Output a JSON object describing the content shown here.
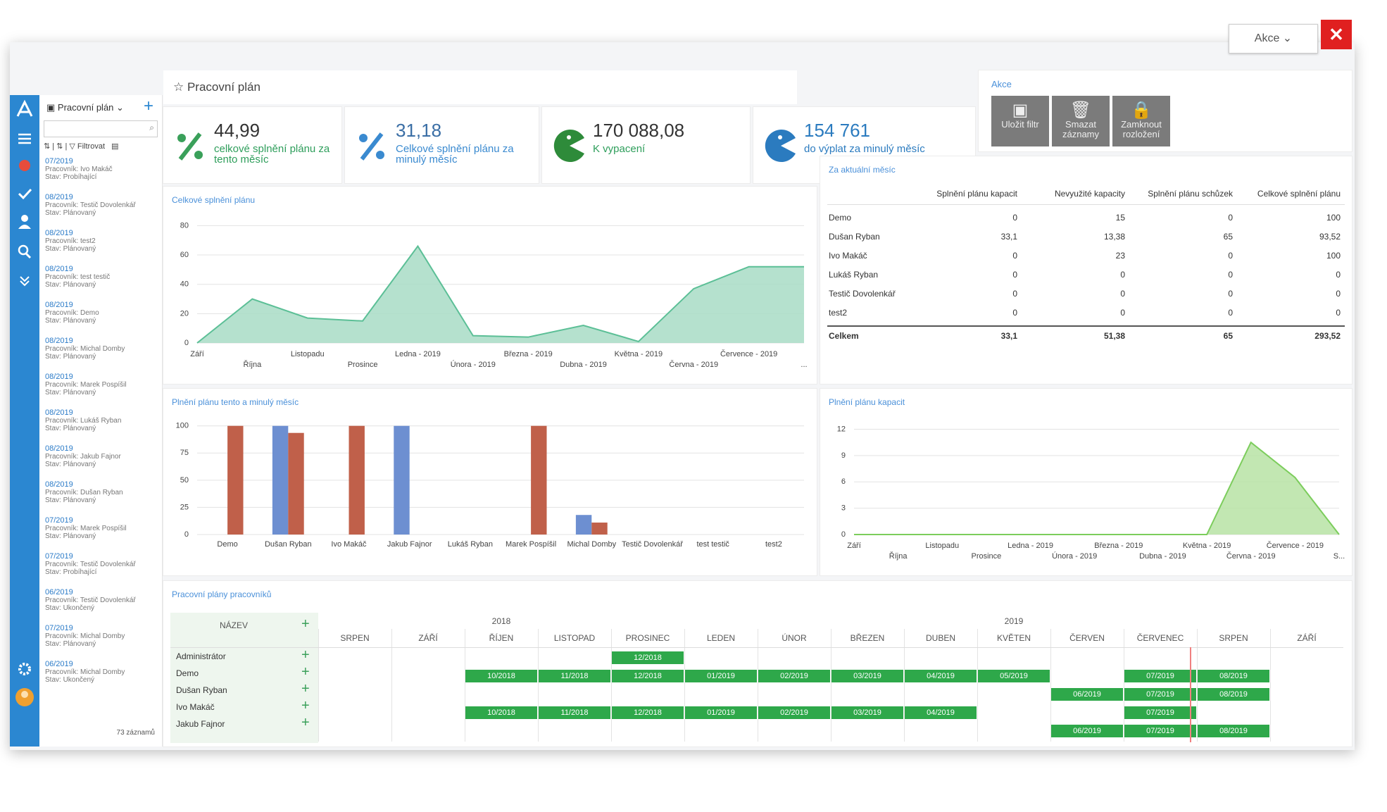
{
  "header": {
    "actions_button": "Akce"
  },
  "nav": {
    "list_title": "Pracovní plán",
    "filter": "Filtrovat",
    "count": "73 záznamů"
  },
  "records": [
    {
      "period": "07/2019",
      "worker": "Pracovník: Ivo Makáč",
      "status": "Stav: Probíhající"
    },
    {
      "period": "08/2019",
      "worker": "Pracovník: Testič Dovolenkář",
      "status": "Stav: Plánovaný"
    },
    {
      "period": "08/2019",
      "worker": "Pracovník: test2",
      "status": "Stav: Plánovaný"
    },
    {
      "period": "08/2019",
      "worker": "Pracovník: test testič",
      "status": "Stav: Plánovaný"
    },
    {
      "period": "08/2019",
      "worker": "Pracovník: Demo",
      "status": "Stav: Plánovaný"
    },
    {
      "period": "08/2019",
      "worker": "Pracovník: Michal Domby",
      "status": "Stav: Plánovaný"
    },
    {
      "period": "08/2019",
      "worker": "Pracovník: Marek Pospíšil",
      "status": "Stav: Plánovaný"
    },
    {
      "period": "08/2019",
      "worker": "Pracovník: Lukáš Ryban",
      "status": "Stav: Plánovaný"
    },
    {
      "period": "08/2019",
      "worker": "Pracovník: Jakub Fajnor",
      "status": "Stav: Plánovaný"
    },
    {
      "period": "08/2019",
      "worker": "Pracovník: Dušan Ryban",
      "status": "Stav: Plánovaný"
    },
    {
      "period": "07/2019",
      "worker": "Pracovník: Marek Pospíšil",
      "status": "Stav: Plánovaný"
    },
    {
      "period": "07/2019",
      "worker": "Pracovník: Testič Dovolenkář",
      "status": "Stav: Probíhající"
    },
    {
      "period": "06/2019",
      "worker": "Pracovník: Testič Dovolenkář",
      "status": "Stav: Ukončený"
    },
    {
      "period": "07/2019",
      "worker": "Pracovník: Michal Domby",
      "status": "Stav: Plánovaný"
    },
    {
      "period": "06/2019",
      "worker": "Pracovník: Michal Domby",
      "status": "Stav: Ukončený"
    }
  ],
  "page_title": "Pracovní plán",
  "kpis": [
    {
      "value": "44,99",
      "label": "celkové splnění plánu za tento měsíc"
    },
    {
      "value": "31,18",
      "label": "Celkové splnění plánu za minulý měsíc"
    },
    {
      "value": "170 088,08",
      "label": "K vypacení"
    },
    {
      "value": "154 761",
      "label": "do výplat za minulý měsíc"
    }
  ],
  "actions": {
    "title": "Akce",
    "buttons": [
      "Uložit filtr",
      "Smazat záznamy",
      "Zamknout rozložení"
    ]
  },
  "chart_data": [
    {
      "type": "area",
      "title": "Celkové splnění plánu",
      "categories": [
        "Září",
        "Října",
        "Listopadu",
        "Prosince",
        "Ledna - 2019",
        "Února - 2019",
        "Března - 2019",
        "Dubna - 2019",
        "Května - 2019",
        "Června - 2019",
        "Července - 2019",
        "..."
      ],
      "values": [
        0,
        30,
        17,
        15,
        66,
        5,
        4,
        12,
        1,
        37,
        52,
        52
      ],
      "color": "#5bbf96",
      "fill_color": "#a8dcc6",
      "ylim": [
        0,
        85
      ],
      "yticks": [
        0,
        20,
        40,
        60,
        80
      ],
      "grid": true
    },
    {
      "type": "bar",
      "title": "Plnění plánu tento a minulý měsíc",
      "categories": [
        "Demo",
        "Dušan Ryban",
        "Ivo Makáč",
        "Jakub Fajnor",
        "Lukáš Ryban",
        "Marek Pospíšil",
        "Michal Domby",
        "Testič Dovolenkář",
        "test testič",
        "test2"
      ],
      "series": [
        {
          "color": "#6d8fd1",
          "values": [
            0,
            100,
            0,
            100,
            0,
            0,
            18,
            0,
            0,
            0
          ]
        },
        {
          "color": "#c0604a",
          "values": [
            100,
            93.52,
            100,
            0,
            0,
            100,
            11,
            0,
            0,
            0
          ]
        }
      ],
      "ylim": [
        0,
        105
      ],
      "yticks": [
        0,
        25,
        50,
        75,
        100
      ],
      "grid": true
    },
    {
      "type": "area",
      "title": "Plnění plánu kapacit",
      "categories": [
        "Září",
        "Října",
        "Listopadu",
        "Prosince",
        "Ledna - 2019",
        "Února - 2019",
        "Března - 2019",
        "Dubna - 2019",
        "Května - 2019",
        "Června - 2019",
        "Července - 2019",
        "S..."
      ],
      "values": [
        0,
        0,
        0,
        0,
        0,
        0,
        0,
        0,
        0,
        10.5,
        6.5,
        0
      ],
      "color": "#7ccd5c",
      "fill_color": "#b7e3a5",
      "ylim": [
        0,
        13
      ],
      "yticks": [
        0,
        3,
        6,
        9,
        12
      ],
      "grid": true
    }
  ],
  "table": {
    "title": "Za aktuální měsíc",
    "columns": [
      "Splnění plánu kapacit",
      "Nevyužité kapacity",
      "Splnění plánu schůzek",
      "Celkové splnění plánu"
    ],
    "rows": [
      [
        "Demo",
        "0",
        "15",
        "0",
        "100"
      ],
      [
        "Dušan Ryban",
        "33,1",
        "13,38",
        "65",
        "93,52"
      ],
      [
        "Ivo Makáč",
        "0",
        "23",
        "0",
        "100"
      ],
      [
        "Lukáš Ryban",
        "0",
        "0",
        "0",
        "0"
      ],
      [
        "Testič Dovolenkář",
        "0",
        "0",
        "0",
        "0"
      ],
      [
        "test2",
        "0",
        "0",
        "0",
        "0"
      ]
    ],
    "total": [
      "Celkem",
      "33,1",
      "51,38",
      "65",
      "293,52"
    ]
  },
  "gantt": {
    "title": "Pracovní plány pracovníků",
    "name_header": "NÁZEV",
    "years": [
      "2018",
      "2019"
    ],
    "months": [
      "SRPEN",
      "ZÁŘÍ",
      "ŘÍJEN",
      "LISTOPAD",
      "PROSINEC",
      "LEDEN",
      "ÚNOR",
      "BŘEZEN",
      "DUBEN",
      "KVĚTEN",
      "ČERVEN",
      "ČERVENEC",
      "SRPEN",
      "ZÁŘÍ"
    ],
    "workers": [
      "Administrátor",
      "Demo",
      "Dušan Ryban",
      "Ivo Makáč",
      "Jakub Fajnor"
    ],
    "lanes": [
      [
        null,
        null,
        null,
        null,
        "12/2018",
        null,
        null,
        null,
        null,
        null,
        null,
        null,
        null,
        null
      ],
      [
        null,
        null,
        "10/2018",
        "11/2018",
        "12/2018",
        "01/2019",
        "02/2019",
        "03/2019",
        "04/2019",
        "05/2019",
        null,
        "07/2019",
        "08/2019",
        null
      ],
      [
        null,
        null,
        null,
        null,
        null,
        null,
        null,
        null,
        null,
        null,
        "06/2019",
        "07/2019",
        "08/2019",
        null
      ],
      [
        null,
        null,
        "10/2018",
        "11/2018",
        "12/2018",
        "01/2019",
        "02/2019",
        "03/2019",
        "04/2019",
        null,
        null,
        "07/2019",
        null,
        null
      ],
      [
        null,
        null,
        null,
        null,
        null,
        null,
        null,
        null,
        null,
        null,
        "06/2019",
        "07/2019",
        "08/2019",
        null
      ]
    ]
  }
}
